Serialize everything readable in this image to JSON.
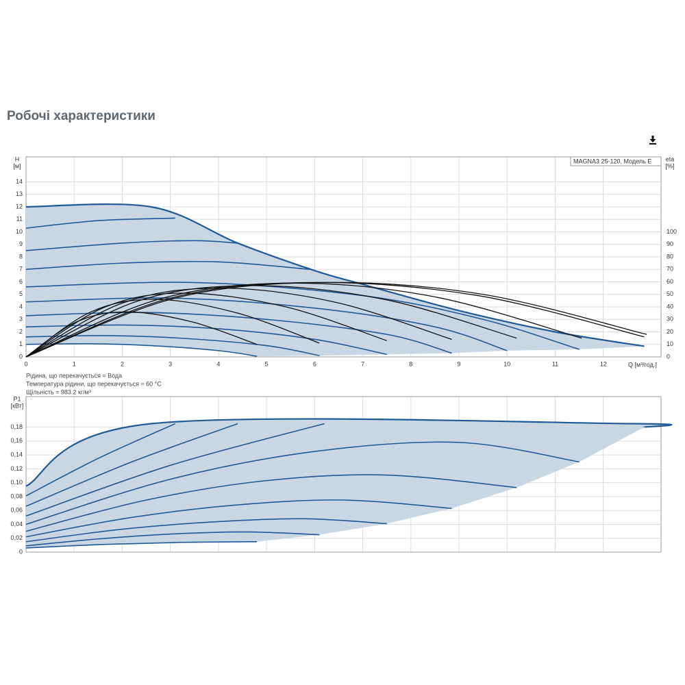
{
  "header": {
    "title": "Робочі характеристики"
  },
  "chart_data": [
    {
      "type": "line",
      "legend_title": "MAGNA3 25-120, Модель E",
      "y_label": [
        "H",
        "[м]"
      ],
      "y2_label": [
        "eta",
        "[%]"
      ],
      "x_label": "Q [м³/год.]",
      "notes": [
        "Рідина, що перекачується = Вода",
        "Температура рідини, що перекачується = 60 °C",
        "Щільність = 983.2 кг/м³"
      ],
      "xlim": [
        0,
        13.2
      ],
      "xticks": [
        0,
        1,
        2,
        3,
        4,
        5,
        6,
        7,
        8,
        9,
        10,
        11,
        12
      ],
      "ylim": [
        0,
        16
      ],
      "yticks": [
        0,
        1,
        2,
        3,
        4,
        5,
        6,
        7,
        8,
        9,
        10,
        11,
        12,
        13,
        14
      ],
      "y2lim": [
        0,
        160
      ],
      "y2ticks": [
        0,
        10,
        20,
        30,
        40,
        50,
        60,
        70,
        80,
        90,
        100
      ],
      "grid": true,
      "fill": "#c9d6e3",
      "series": [
        {
          "color": "#1f5a96",
          "x": [
            0,
            2.6,
            4.4,
            6,
            7,
            9,
            11,
            12.85
          ],
          "values": [
            12,
            12,
            9.1,
            6.9,
            5.8,
            3.7,
            2.0,
            0.85
          ]
        },
        {
          "color": "#1f5a96",
          "x": [
            0,
            1.5,
            3.1
          ],
          "values": [
            10.3,
            10.9,
            11.1
          ]
        },
        {
          "color": "#1f5a96",
          "x": [
            0,
            2,
            3.5,
            4.4
          ],
          "values": [
            8.5,
            9.1,
            9.3,
            9.1
          ]
        },
        {
          "color": "#1f5a96",
          "x": [
            0,
            2,
            4,
            5.9
          ],
          "values": [
            7.0,
            7.5,
            7.6,
            7.0
          ]
        },
        {
          "color": "#1f5a96",
          "x": [
            0,
            3.5,
            7,
            9.5,
            11.5
          ],
          "values": [
            5.6,
            5.95,
            4.9,
            3.0,
            0.6
          ]
        },
        {
          "color": "#1f5a96",
          "x": [
            0,
            3,
            6,
            8.5,
            10
          ],
          "values": [
            4.4,
            4.7,
            3.9,
            2.4,
            0.5
          ]
        },
        {
          "color": "#1f5a96",
          "x": [
            0,
            2.5,
            5,
            7.5,
            8.85
          ],
          "values": [
            3.3,
            3.55,
            3.0,
            1.8,
            0.3
          ]
        },
        {
          "color": "#1f5a96",
          "x": [
            0,
            2,
            4,
            6,
            7.5
          ],
          "values": [
            2.4,
            2.55,
            2.25,
            1.4,
            0.2
          ]
        },
        {
          "color": "#1f5a96",
          "x": [
            0,
            1.6,
            3.2,
            5,
            6.1
          ],
          "values": [
            1.6,
            1.7,
            1.5,
            0.9,
            0.1
          ]
        },
        {
          "color": "#1f5a96",
          "x": [
            0,
            1.3,
            2.6,
            4,
            4.8
          ],
          "values": [
            1.0,
            1.05,
            0.9,
            0.5,
            0.05
          ]
        },
        {
          "color": "#111111",
          "axis": "y2",
          "x": [
            0,
            1.05,
            2.1,
            3.45,
            4.8
          ],
          "values": [
            0,
            28,
            36,
            28,
            10
          ]
        },
        {
          "color": "#111111",
          "axis": "y2",
          "x": [
            0,
            1.35,
            2.7,
            4.4,
            6.1
          ],
          "values": [
            0,
            36,
            46,
            35,
            11
          ]
        },
        {
          "color": "#111111",
          "axis": "y2",
          "x": [
            0,
            1.65,
            3.3,
            5.4,
            7.5
          ],
          "values": [
            0,
            40,
            51,
            40,
            13
          ]
        },
        {
          "color": "#111111",
          "axis": "y2",
          "x": [
            0,
            2,
            4,
            6.4,
            8.85
          ],
          "values": [
            0,
            43,
            55,
            44,
            14
          ]
        },
        {
          "color": "#111111",
          "axis": "y2",
          "x": [
            0,
            2.35,
            4.7,
            7.45,
            10.2
          ],
          "values": [
            0,
            45,
            57,
            46,
            15
          ]
        },
        {
          "color": "#111111",
          "axis": "y2",
          "x": [
            0,
            2.75,
            5.5,
            8.5,
            11.55
          ],
          "values": [
            0,
            46,
            59,
            48,
            15
          ]
        },
        {
          "color": "#111111",
          "axis": "y2",
          "x": [
            0,
            3,
            6,
            9.4,
            12.85
          ],
          "values": [
            0,
            47,
            59.5,
            49,
            16
          ]
        },
        {
          "color": "#111111",
          "axis": "y2",
          "x": [
            0,
            3.1,
            6.2,
            9.5,
            12.9
          ],
          "values": [
            0,
            47,
            59.5,
            50,
            18
          ]
        }
      ]
    },
    {
      "type": "line",
      "y_label": [
        "P1",
        "[кВт]"
      ],
      "xlim": [
        0,
        13.2
      ],
      "xticks": [
        0,
        1,
        2,
        3,
        4,
        5,
        6,
        7,
        8,
        9,
        10,
        11,
        12
      ],
      "ylim": [
        0,
        0.224
      ],
      "yticks": [
        0,
        {
          "value": 0.02,
          "label": "0,02"
        },
        {
          "value": 0.04,
          "label": "0,04"
        },
        {
          "value": 0.06,
          "label": "0,06"
        },
        {
          "value": 0.08,
          "label": "0,08"
        },
        {
          "value": 0.1,
          "label": "0,10"
        },
        {
          "value": 0.12,
          "label": "0,12"
        },
        {
          "value": 0.14,
          "label": "0,14"
        },
        {
          "value": 0.16,
          "label": "0,16"
        },
        {
          "value": 0.18,
          "label": "0,18"
        }
      ],
      "grid": true,
      "fill": "#c9d6e3",
      "series": [
        {
          "color": "#1f5a96",
          "x": [
            0,
            2.6,
            12.6,
            12.85
          ],
          "values": [
            0.095,
            0.185,
            0.185,
            0.18
          ]
        },
        {
          "color": "#1f5a96",
          "x": [
            0,
            1.5,
            3.1
          ],
          "values": [
            0.081,
            0.135,
            0.185
          ]
        },
        {
          "color": "#1f5a96",
          "x": [
            0,
            2.2,
            4.4
          ],
          "values": [
            0.066,
            0.13,
            0.185
          ]
        },
        {
          "color": "#1f5a96",
          "x": [
            0,
            3,
            6.2
          ],
          "values": [
            0.052,
            0.125,
            0.185
          ]
        },
        {
          "color": "#1f5a96",
          "x": [
            0,
            3,
            6,
            9,
            11.5
          ],
          "values": [
            0.04,
            0.105,
            0.145,
            0.158,
            0.13
          ]
        },
        {
          "color": "#1f5a96",
          "x": [
            0,
            2.5,
            5,
            7.5,
            10.2
          ],
          "values": [
            0.03,
            0.075,
            0.103,
            0.111,
            0.093
          ]
        },
        {
          "color": "#1f5a96",
          "x": [
            0,
            2.2,
            4.4,
            6.6,
            8.85
          ],
          "values": [
            0.022,
            0.05,
            0.068,
            0.075,
            0.063
          ]
        },
        {
          "color": "#1f5a96",
          "x": [
            0,
            2,
            4,
            5.8,
            7.5
          ],
          "values": [
            0.015,
            0.033,
            0.044,
            0.048,
            0.041
          ]
        },
        {
          "color": "#1f5a96",
          "x": [
            0,
            1.5,
            3,
            4.6,
            6.1
          ],
          "values": [
            0.009,
            0.019,
            0.026,
            0.029,
            0.025
          ]
        },
        {
          "color": "#1f5a96",
          "x": [
            0,
            1.6,
            3.2,
            4.8
          ],
          "values": [
            0.006,
            0.011,
            0.014,
            0.015
          ]
        }
      ]
    }
  ]
}
